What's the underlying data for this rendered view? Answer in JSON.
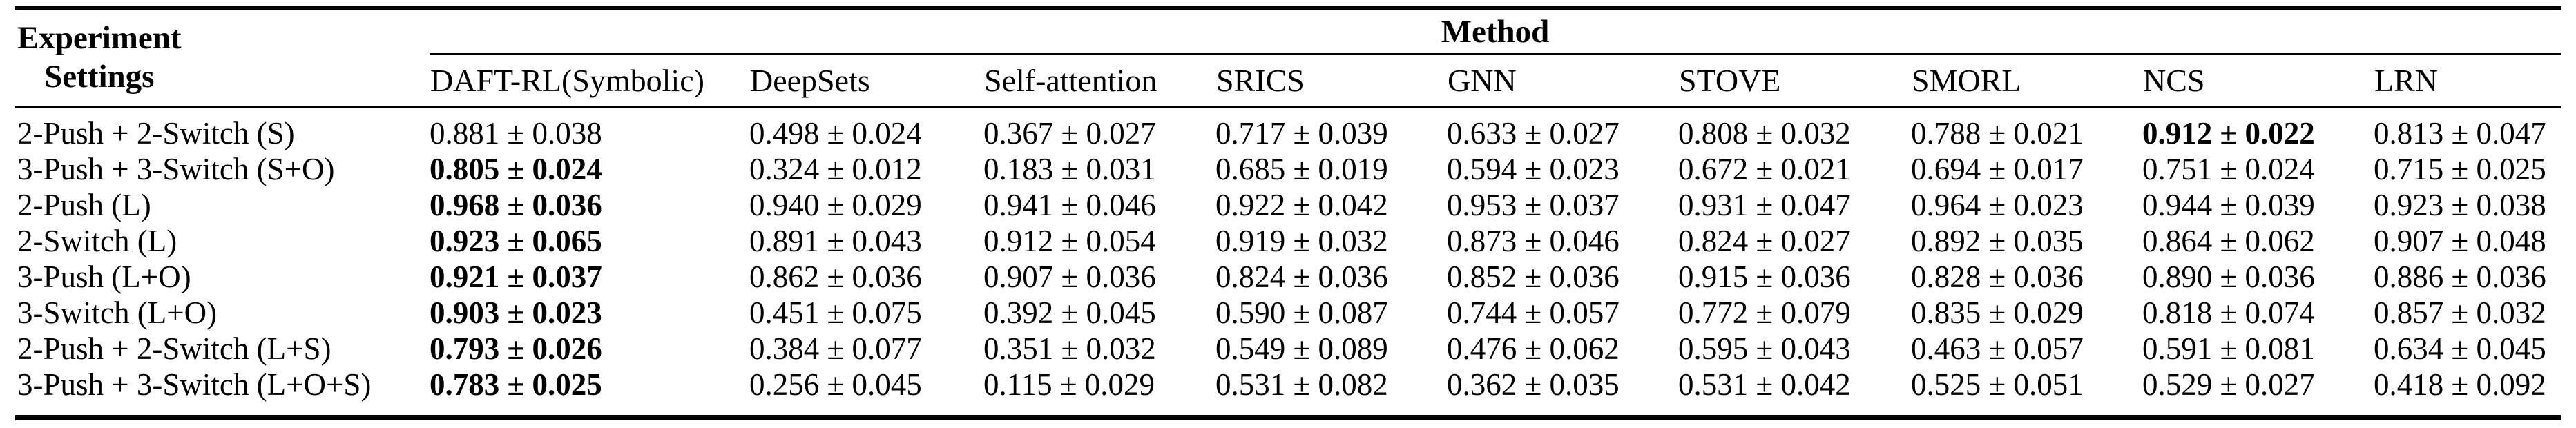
{
  "page": {
    "background_color": "#ffffff",
    "text_color": "#000000"
  },
  "table": {
    "experiment_settings_header": {
      "line1": "Experiment",
      "line2": "Settings"
    },
    "method_group_header": "Method",
    "method_columns": [
      "DAFT-RL(Symbolic)",
      "DeepSets",
      "Self-attention",
      "SRICS",
      "GNN",
      "STOVE",
      "SMORL",
      "NCS",
      "LRN"
    ],
    "rows": [
      {
        "setting": "2-Push + 2-Switch (S)",
        "values": [
          "0.881 ± 0.038",
          "0.498 ± 0.024",
          "0.367 ± 0.027",
          "0.717 ± 0.039",
          "0.633 ± 0.027",
          "0.808 ± 0.032",
          "0.788 ± 0.021",
          "0.912 ± 0.022",
          "0.813 ± 0.047"
        ],
        "bold_value_index": 7
      },
      {
        "setting": "3-Push + 3-Switch (S+O)",
        "values": [
          "0.805 ± 0.024",
          "0.324 ± 0.012",
          "0.183 ± 0.031",
          "0.685 ± 0.019",
          "0.594 ± 0.023",
          "0.672 ± 0.021",
          "0.694 ± 0.017",
          "0.751 ± 0.024",
          "0.715 ± 0.025"
        ],
        "bold_value_index": 0
      },
      {
        "setting": "2-Push (L)",
        "values": [
          "0.968 ± 0.036",
          "0.940 ± 0.029",
          "0.941 ± 0.046",
          "0.922 ± 0.042",
          "0.953 ± 0.037",
          "0.931 ± 0.047",
          "0.964 ± 0.023",
          "0.944 ± 0.039",
          "0.923 ± 0.038"
        ],
        "bold_value_index": 0
      },
      {
        "setting": "2-Switch (L)",
        "values": [
          "0.923 ± 0.065",
          "0.891 ± 0.043",
          "0.912 ± 0.054",
          "0.919 ± 0.032",
          "0.873 ± 0.046",
          "0.824 ± 0.027",
          "0.892 ± 0.035",
          "0.864 ± 0.062",
          "0.907 ± 0.048"
        ],
        "bold_value_index": 0
      },
      {
        "setting": "3-Push (L+O)",
        "values": [
          "0.921 ± 0.037",
          "0.862 ± 0.036",
          "0.907 ± 0.036",
          "0.824 ± 0.036",
          "0.852 ± 0.036",
          "0.915 ± 0.036",
          "0.828 ± 0.036",
          "0.890 ± 0.036",
          "0.886 ± 0.036"
        ],
        "bold_value_index": 0
      },
      {
        "setting": "3-Switch (L+O)",
        "values": [
          "0.903 ± 0.023",
          "0.451 ± 0.075",
          "0.392 ± 0.045",
          "0.590 ± 0.087",
          "0.744 ± 0.057",
          "0.772 ± 0.079",
          "0.835 ± 0.029",
          "0.818 ± 0.074",
          "0.857 ± 0.032"
        ],
        "bold_value_index": 0
      },
      {
        "setting": "2-Push + 2-Switch (L+S)",
        "values": [
          "0.793 ± 0.026",
          "0.384 ± 0.077",
          "0.351 ± 0.032",
          "0.549 ± 0.089",
          "0.476 ± 0.062",
          "0.595 ± 0.043",
          "0.463 ± 0.057",
          "0.591 ± 0.081",
          "0.634 ± 0.045"
        ],
        "bold_value_index": 0
      },
      {
        "setting": "3-Push + 3-Switch (L+O+S)",
        "values": [
          "0.783 ± 0.025",
          "0.256 ± 0.045",
          "0.115 ± 0.029",
          "0.531 ± 0.082",
          "0.362 ± 0.035",
          "0.531 ± 0.042",
          "0.525 ± 0.051",
          "0.529 ± 0.027",
          "0.418 ± 0.092"
        ],
        "bold_value_index": 0
      }
    ]
  }
}
